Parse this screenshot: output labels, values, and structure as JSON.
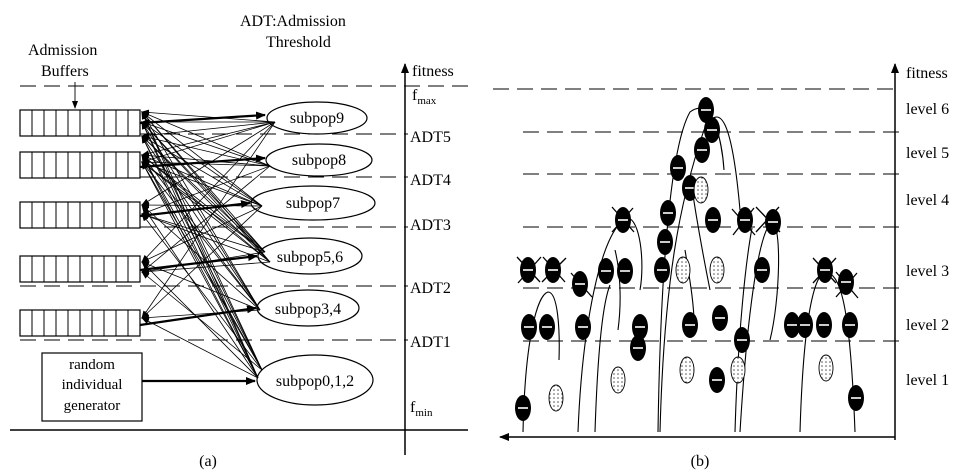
{
  "panel_a": {
    "title_line1": "ADT:Admission",
    "title_line2": "Threshold",
    "buffers_label_line1": "Admission",
    "buffers_label_line2": "Buffers",
    "axis_label": "fitness",
    "fmax": "f",
    "fmax_sub": "max",
    "fmin": "f",
    "fmin_sub": "min",
    "thresholds": [
      "ADT5",
      "ADT4",
      "ADT3",
      "ADT2",
      "ADT1"
    ],
    "subpops": [
      "subpop9",
      "subpop8",
      "subpop7",
      "subpop5,6",
      "subpop3,4",
      "subpop0,1,2"
    ],
    "generator_line1": "random",
    "generator_line2": "individual",
    "generator_line3": "generator",
    "caption": "(a)"
  },
  "panel_b": {
    "axis_label": "fitness",
    "levels": [
      "level 6",
      "level 5",
      "level 4",
      "level 3",
      "level 2",
      "level 1"
    ],
    "caption": "(b)"
  }
}
